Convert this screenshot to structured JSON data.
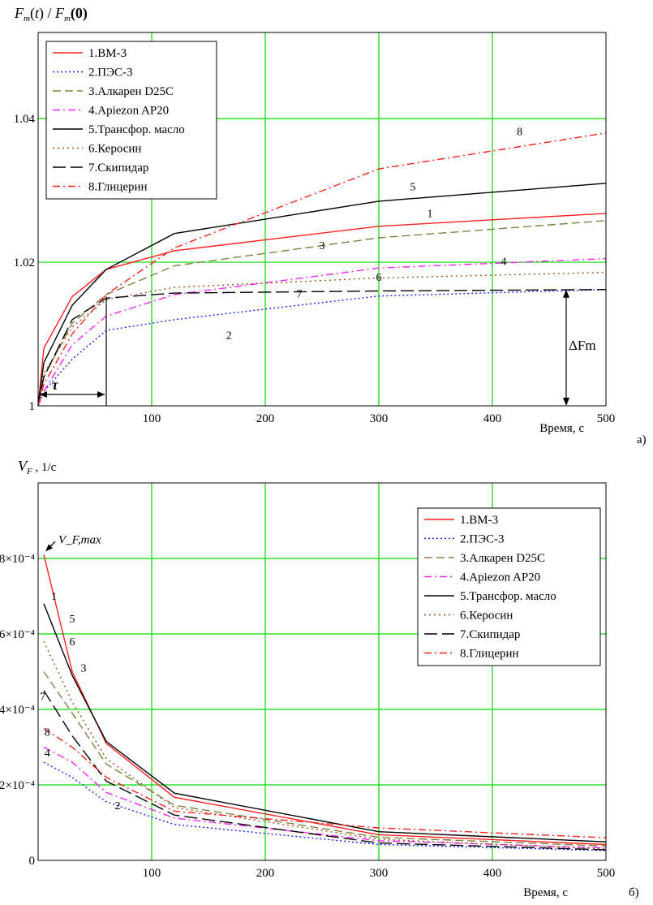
{
  "chart_data": [
    {
      "type": "line",
      "panel": "а)",
      "ylabel": "F_m(t) / F_m(0)",
      "xlabel": "Время, с",
      "xlim": [
        0,
        500
      ],
      "ylim": [
        1.0,
        1.052
      ],
      "xticks": [
        100,
        200,
        300,
        400,
        500
      ],
      "yticks": [
        1.0,
        1.02,
        1.04
      ],
      "ytick_labels": [
        "1",
        "1.02",
        "1.04"
      ],
      "grid": true,
      "legend_position": "top-left",
      "annotations": {
        "tau": "τ",
        "delta": "ΔF_m",
        "curve_labels": [
          {
            "text": "1",
            "x": 345,
            "y": 1.0263
          },
          {
            "text": "2",
            "x": 168,
            "y": 1.0093
          },
          {
            "text": "3",
            "x": 250,
            "y": 1.0218
          },
          {
            "text": "4",
            "x": 410,
            "y": 1.0196
          },
          {
            "text": "5",
            "x": 330,
            "y": 1.03
          },
          {
            "text": "6",
            "x": 300,
            "y": 1.0174
          },
          {
            "text": "7",
            "x": 230,
            "y": 1.0151
          },
          {
            "text": "8",
            "x": 424,
            "y": 1.0377
          }
        ]
      },
      "x": [
        0,
        5,
        30,
        60,
        120,
        300,
        500
      ],
      "series": [
        {
          "name": "1.ВМ-3",
          "color": "#ff2020",
          "dash": "",
          "y": [
            1.0,
            1.008,
            1.0152,
            1.019,
            1.0216,
            1.025,
            1.0268
          ]
        },
        {
          "name": "2.ПЭС-3",
          "color": "#2020ff",
          "dash": "2,3",
          "y": [
            1.0,
            1.002,
            1.0065,
            1.0105,
            1.012,
            1.0153,
            1.0162
          ]
        },
        {
          "name": "3.Алкарен D25C",
          "color": "#808040",
          "dash": "10,5",
          "y": [
            1.0,
            1.004,
            1.0115,
            1.0155,
            1.0195,
            1.0234,
            1.0258
          ]
        },
        {
          "name": "4.Apiezon AP20",
          "color": "#ff20ff",
          "dash": "9,4,2,4",
          "y": [
            1.0,
            1.002,
            1.0085,
            1.0125,
            1.0155,
            1.0192,
            1.0205
          ]
        },
        {
          "name": "5.Трансфор. масло",
          "color": "#000000",
          "dash": "",
          "y": [
            1.0,
            1.006,
            1.014,
            1.019,
            1.024,
            1.0285,
            1.031
          ]
        },
        {
          "name": "6.Керосин",
          "color": "#a05020",
          "dash": "2,4",
          "y": [
            1.0,
            1.0045,
            1.011,
            1.0148,
            1.0165,
            1.0178,
            1.0186
          ]
        },
        {
          "name": "7.Скипидар",
          "color": "#000000",
          "dash": "16,6",
          "y": [
            1.0,
            1.004,
            1.012,
            1.015,
            1.0157,
            1.016,
            1.0162
          ]
        },
        {
          "name": "8.Глицерин",
          "color": "#ff2020",
          "dash": "9,4,2,4",
          "y": [
            1.0,
            1.003,
            1.01,
            1.0155,
            1.022,
            1.033,
            1.038
          ]
        }
      ]
    },
    {
      "type": "line",
      "panel": "б)",
      "ylabel": "V_F, 1/c",
      "xlabel": "Время, с",
      "xlim": [
        0,
        500
      ],
      "ylim": [
        0,
        0.001
      ],
      "xticks": [
        100,
        200,
        300,
        400,
        500
      ],
      "yticks": [
        0,
        0.0002,
        0.0004,
        0.0006,
        0.0008
      ],
      "ytick_labels": [
        "0",
        "2×10⁻⁴",
        "4×10⁻⁴",
        "6×10⁻⁴",
        "8×10⁻⁴"
      ],
      "grid": true,
      "legend_position": "top-right",
      "annotations": {
        "vmax": "V_F,max",
        "curve_labels": [
          {
            "text": "1",
            "x": 14,
            "y": 0.00069
          },
          {
            "text": "5",
            "x": 30,
            "y": 0.00063
          },
          {
            "text": "6",
            "x": 30,
            "y": 0.00057
          },
          {
            "text": "3",
            "x": 40,
            "y": 0.0005
          },
          {
            "text": "7",
            "x": 4,
            "y": 0.000425
          },
          {
            "text": "8",
            "x": 8,
            "y": 0.00033
          },
          {
            "text": "4",
            "x": 8,
            "y": 0.000275
          },
          {
            "text": "2",
            "x": 70,
            "y": 0.000135
          }
        ]
      },
      "x": [
        5,
        30,
        60,
        120,
        300,
        500
      ],
      "series": [
        {
          "name": "1.ВМ-3",
          "color": "#ff2020",
          "dash": "",
          "y": [
            0.00081,
            0.0005,
            0.00031,
            0.000167,
            6.8e-05,
            4.2e-05
          ]
        },
        {
          "name": "2.ПЭС-3",
          "color": "#2020ff",
          "dash": "2,3",
          "y": [
            0.00026,
            0.00022,
            0.000155,
            9.5e-05,
            4.2e-05,
            2.6e-05
          ]
        },
        {
          "name": "3.Алкарен D25C",
          "color": "#808040",
          "dash": "10,5",
          "y": [
            0.0005,
            0.00039,
            0.000255,
            0.000146,
            6.1e-05,
            3.8e-05
          ]
        },
        {
          "name": "4.Apiezon AP20",
          "color": "#ff20ff",
          "dash": "9,4,2,4",
          "y": [
            0.0003,
            0.00026,
            0.00018,
            0.000112,
            5.2e-05,
            3.3e-05
          ]
        },
        {
          "name": "5.Трансфор. масло",
          "color": "#000000",
          "dash": "",
          "y": [
            0.00068,
            0.00049,
            0.000315,
            0.000178,
            7.6e-05,
            4.9e-05
          ]
        },
        {
          "name": "6.Керосин",
          "color": "#a05020",
          "dash": "2,4",
          "y": [
            0.00058,
            0.00042,
            0.00027,
            0.00014,
            5.6e-05,
            3e-05
          ]
        },
        {
          "name": "7.Скипидар",
          "color": "#000000",
          "dash": "16,6",
          "y": [
            0.00045,
            0.00033,
            0.00021,
            0.00012,
            4.6e-05,
            2.8e-05
          ]
        },
        {
          "name": "8.Глицерин",
          "color": "#ff2020",
          "dash": "9,4,2,4",
          "y": [
            0.00035,
            0.0003,
            0.00022,
            0.00013,
            8.6e-05,
            6e-05
          ]
        }
      ]
    }
  ]
}
